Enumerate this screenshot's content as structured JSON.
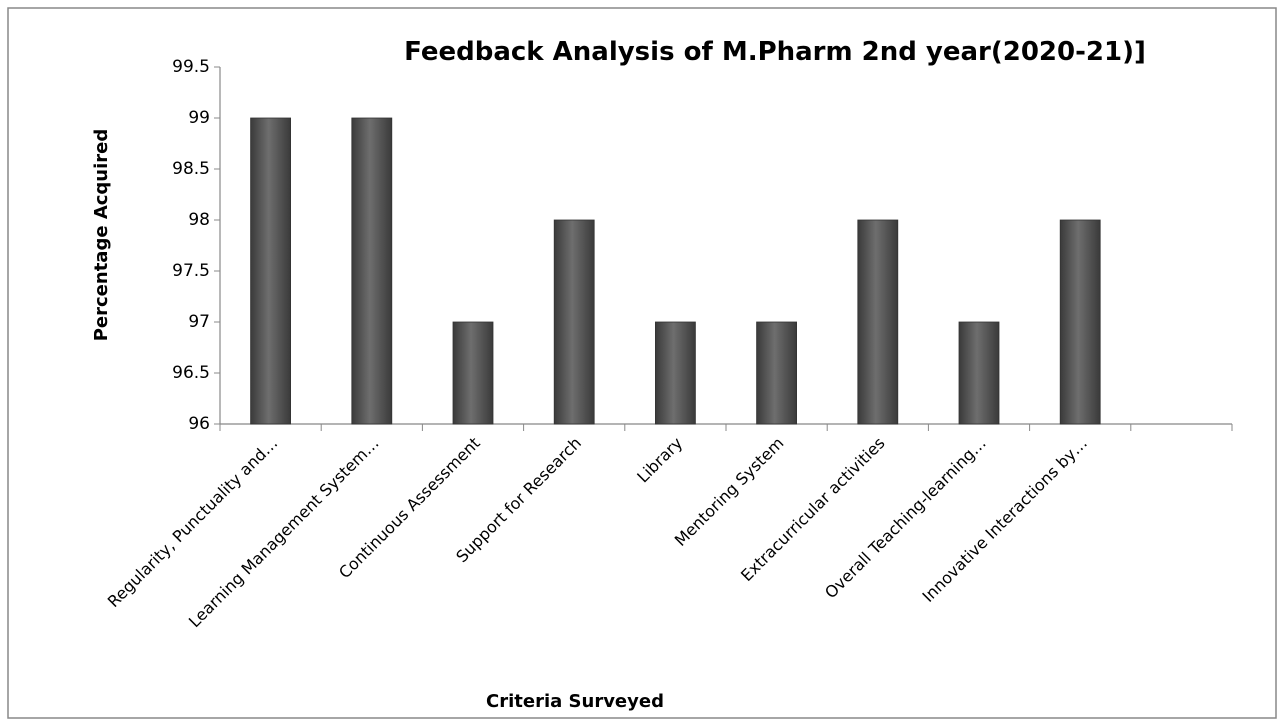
{
  "chart_data": {
    "type": "bar",
    "title": "Feedback Analysis of M.Pharm 2nd year(2020-21)]",
    "x_label": "Criteria Surveyed",
    "y_label": "Percentage Acquired",
    "categories": [
      "Regularity, Punctuality and…",
      "Learning Management System…",
      "Continuous Assessment",
      "Support for Research",
      "Library",
      "Mentoring System",
      "Extracurricular activities",
      "Overall Teaching-learning…",
      "Innovative Interactions by…",
      null
    ],
    "values": [
      99,
      99,
      97,
      98,
      97,
      97,
      98,
      97,
      98,
      null
    ],
    "color": "#5a5a5a",
    "ylim": [
      96,
      99.5
    ],
    "yticks": [
      96,
      96.5,
      97,
      97.5,
      98,
      98.5,
      99,
      99.5
    ],
    "grid": false
  }
}
